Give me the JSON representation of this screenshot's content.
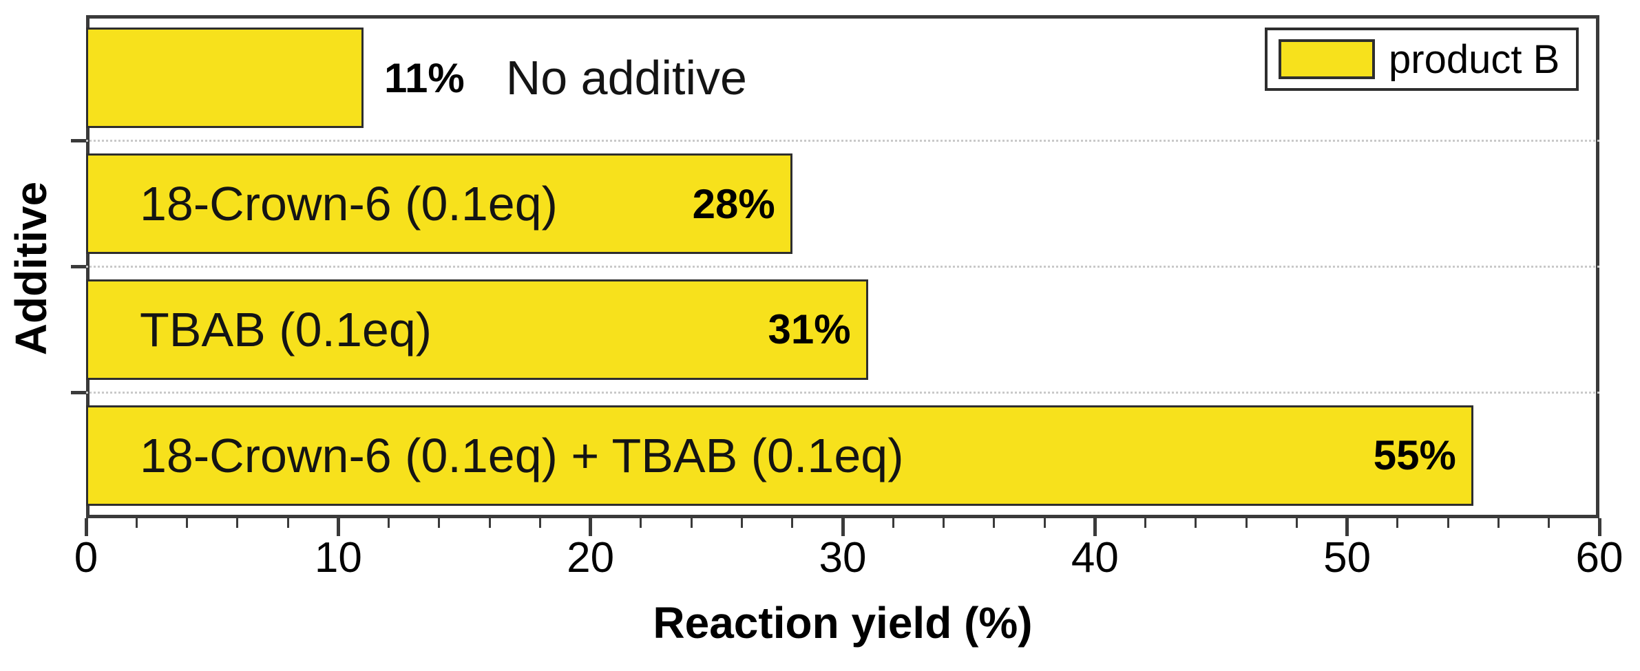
{
  "chart_data": {
    "type": "bar",
    "orientation": "horizontal",
    "title": "",
    "xlabel": "Reaction yield (%)",
    "ylabel": "Additive",
    "xlim": [
      0,
      60
    ],
    "x_major_ticks": [
      0,
      10,
      20,
      30,
      40,
      50,
      60
    ],
    "x_minor_tick_step": 2,
    "grid": "dotted horizontal separators between category slots",
    "legend": {
      "position": "top-right",
      "entries": [
        {
          "label": "product B",
          "swatch_color": "#f7e11c"
        }
      ]
    },
    "categories": [
      "No additive",
      "18-Crown-6 (0.1eq)",
      "TBAB (0.1eq)",
      "18-Crown-6 (0.1eq) + TBAB (0.1eq)"
    ],
    "values": [
      11,
      28,
      31,
      55
    ],
    "bars": [
      {
        "category": "No additive",
        "value": 11,
        "value_label": "11%",
        "value_label_position": "outside-right",
        "category_label_position": "outside-right"
      },
      {
        "category": "18-Crown-6 (0.1eq)",
        "value": 28,
        "value_label": "28%",
        "value_label_position": "inside-right",
        "category_label_position": "inside-left"
      },
      {
        "category": "TBAB (0.1eq)",
        "value": 31,
        "value_label": "31%",
        "value_label_position": "inside-right",
        "category_label_position": "inside-left"
      },
      {
        "category": "18-Crown-6 (0.1eq) + TBAB (0.1eq)",
        "value": 55,
        "value_label": "55%",
        "value_label_position": "inside-right",
        "category_label_position": "inside-left"
      }
    ],
    "colors": {
      "bar_fill": "#f7e11c",
      "bar_border": "#2e2e2e",
      "axis": "#3a3a3a",
      "text": "#000000",
      "grid_dots": "#c9c9c9",
      "background": "#ffffff"
    }
  }
}
